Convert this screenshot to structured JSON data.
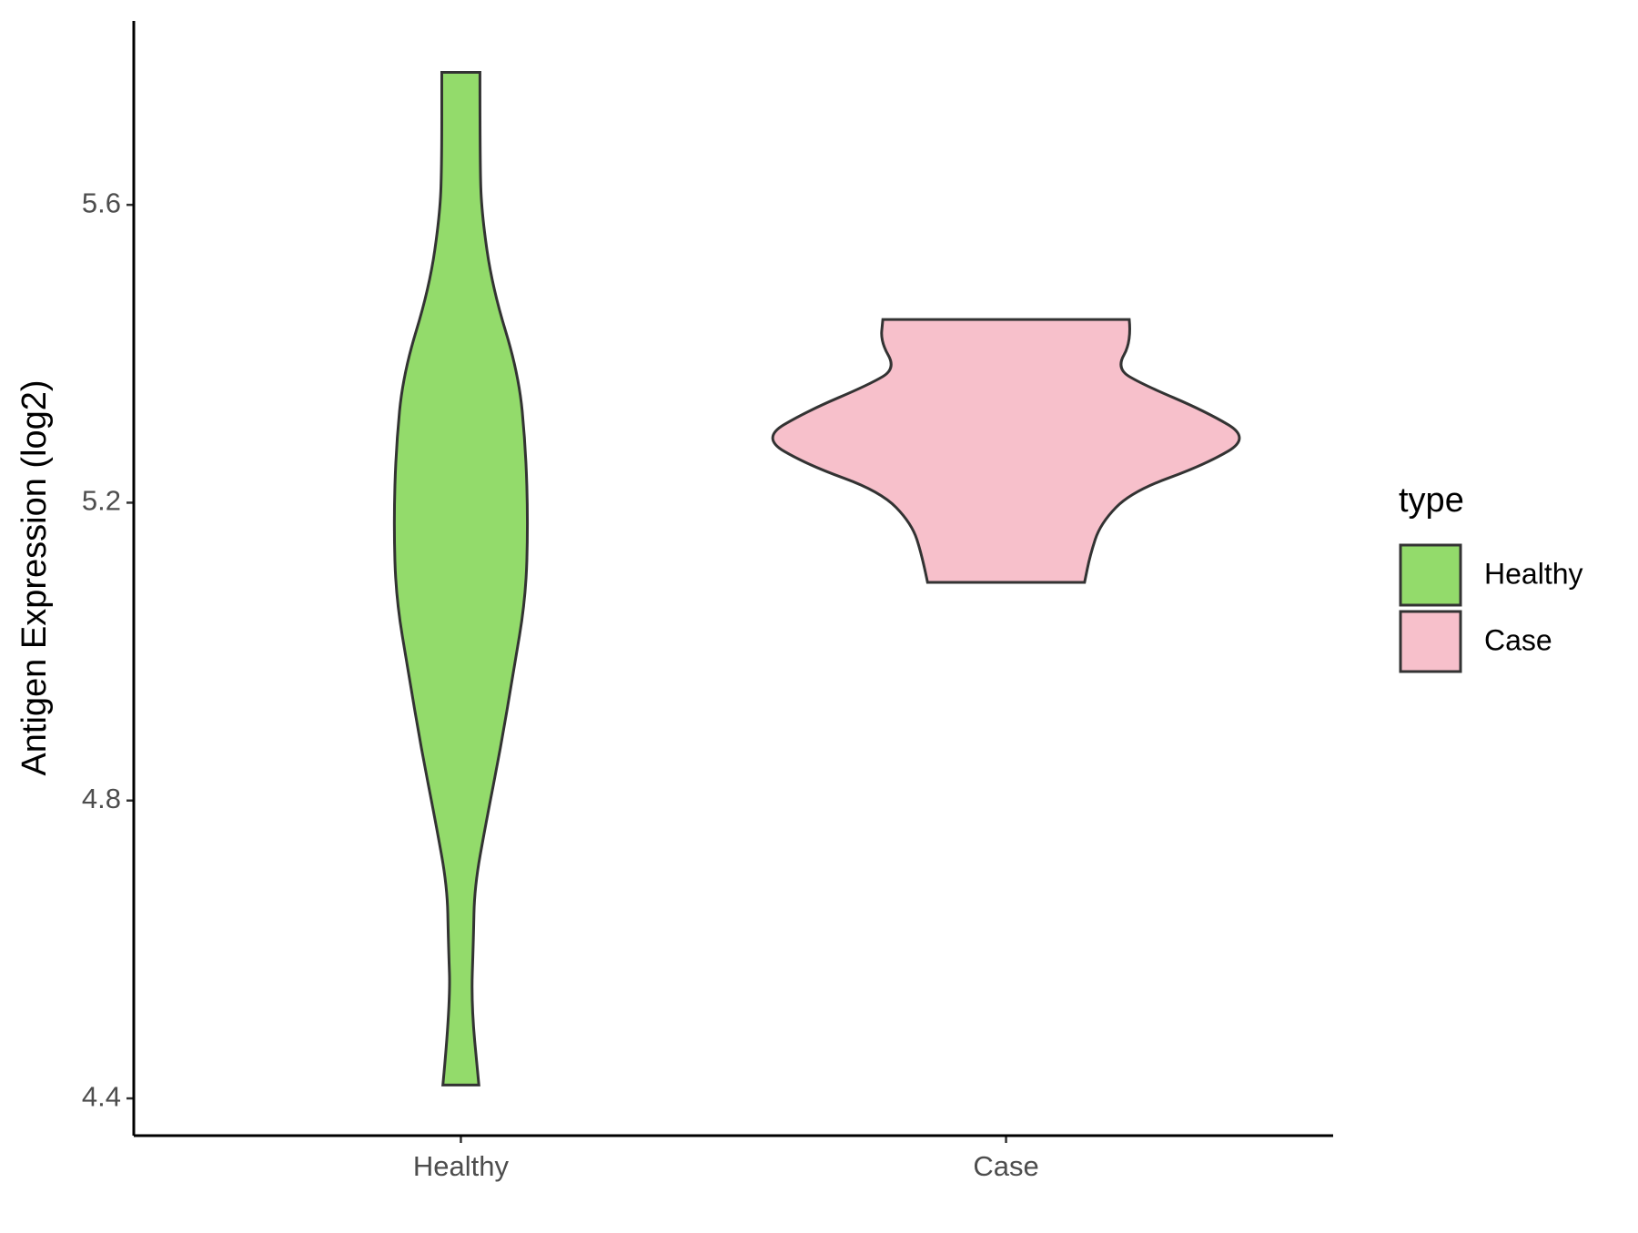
{
  "chart_data": {
    "type": "violin",
    "y_label": "Antigen Expression (log2)",
    "categories": [
      "Healthy",
      "Case"
    ],
    "ylim": [
      4.35,
      5.847
    ],
    "yticks": [
      4.4,
      4.8,
      5.2,
      5.6
    ],
    "legend_title": "type",
    "legend": "right",
    "series": [
      {
        "name": "Healthy",
        "color": "#93db6b",
        "y": [
          5.778,
          5.66,
          5.589,
          5.488,
          5.373,
          5.273,
          5.172,
          5.072,
          4.971,
          4.871,
          4.77,
          4.684,
          4.612,
          4.526,
          4.418
        ],
        "width": [
          0.035,
          0.035,
          0.038,
          0.058,
          0.106,
          0.119,
          0.123,
          0.119,
          0.096,
          0.073,
          0.046,
          0.025,
          0.023,
          0.019,
          0.033
        ]
      },
      {
        "name": "Case",
        "color": "#f7c0cb",
        "y": [
          5.446,
          5.416,
          5.38,
          5.359,
          5.323,
          5.287,
          5.251,
          5.215,
          5.172,
          5.129,
          5.093
        ],
        "width": [
          0.226,
          0.23,
          0.202,
          0.25,
          0.365,
          0.449,
          0.365,
          0.23,
          0.173,
          0.154,
          0.144
        ]
      }
    ]
  }
}
